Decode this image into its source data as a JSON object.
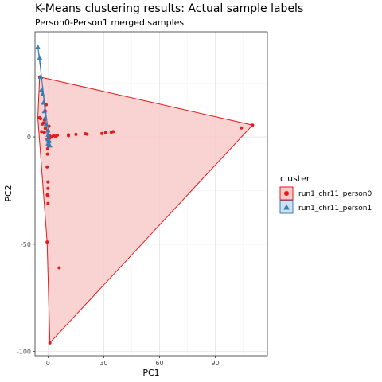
{
  "chart_data": {
    "type": "scatter",
    "title": "K-Means clustering results: Actual sample labels",
    "subtitle": "Person0-Person1 merged samples",
    "xlabel": "PC1",
    "ylabel": "PC2",
    "xlim": [
      -7,
      118
    ],
    "ylim": [
      -102,
      49
    ],
    "xticks": [
      0,
      30,
      60,
      90
    ],
    "xtick_labels": [
      "0",
      "30",
      "60",
      "90"
    ],
    "yticks": [
      0,
      -50,
      -100
    ],
    "ytick_labels": [
      "0",
      "-50",
      "-100"
    ],
    "grid": true,
    "legend": {
      "title": "cluster",
      "placement": "right"
    },
    "series": [
      {
        "name": "run1_chr11_person0",
        "color": "#e41a1c",
        "fill": "#f8caca",
        "marker": "circle",
        "hull": [
          [
            -4.5,
            28
          ],
          [
            -5.5,
            9
          ],
          [
            -0.5,
            -49
          ],
          [
            1,
            -96
          ],
          [
            110,
            5.5
          ]
        ],
        "points": [
          [
            110,
            5.5
          ],
          [
            104,
            4.2
          ],
          [
            35,
            2.5
          ],
          [
            34,
            2.2
          ],
          [
            31,
            2.0
          ],
          [
            29,
            1.6
          ],
          [
            21,
            1.3
          ],
          [
            20,
            1.5
          ],
          [
            15,
            1.2
          ],
          [
            11,
            1.0
          ],
          [
            11,
            0.6
          ],
          [
            5,
            0.8
          ],
          [
            4,
            0.3
          ],
          [
            3,
            0.6
          ],
          [
            2,
            0
          ],
          [
            1,
            -0.5
          ],
          [
            1,
            0.4
          ],
          [
            0.2,
            0.3
          ],
          [
            -0.5,
            -1.0
          ],
          [
            0,
            -1.5
          ],
          [
            0.5,
            -2.5
          ],
          [
            0,
            -4
          ],
          [
            -0.2,
            -5.5
          ],
          [
            -0.3,
            -8
          ],
          [
            -0.5,
            -14
          ],
          [
            0,
            -21
          ],
          [
            0,
            -24
          ],
          [
            -0.4,
            -27
          ],
          [
            0,
            -27.5
          ],
          [
            0,
            -31
          ],
          [
            -0.5,
            -49
          ],
          [
            6,
            -61
          ],
          [
            1,
            -96
          ],
          [
            -4,
            8.5
          ],
          [
            -4.5,
            9
          ],
          [
            -3,
            6
          ],
          [
            -2.5,
            6.5
          ],
          [
            -3.5,
            2.5
          ],
          [
            -2,
            2
          ],
          [
            -1.5,
            4
          ],
          [
            -2,
            8
          ],
          [
            -1.5,
            12
          ],
          [
            -1,
            15
          ],
          [
            0,
            3
          ],
          [
            0.5,
            5
          ],
          [
            -4.5,
            28
          ]
        ]
      },
      {
        "name": "run1_chr11_person1",
        "color": "#377eb8",
        "fill": "#cfe0ef",
        "marker": "triangle",
        "hull": [
          [
            -5.5,
            42
          ],
          [
            -4.5,
            37
          ],
          [
            0,
            -3
          ],
          [
            1,
            -4
          ]
        ],
        "points": [
          [
            -5.5,
            42
          ],
          [
            -4.5,
            37
          ],
          [
            -4,
            28
          ],
          [
            -3.5,
            22
          ],
          [
            -3,
            20
          ],
          [
            -2.5,
            16
          ],
          [
            -2,
            12
          ],
          [
            -1.5,
            9
          ],
          [
            -1,
            6
          ],
          [
            0,
            3
          ],
          [
            0,
            1
          ],
          [
            0,
            -1
          ],
          [
            0.5,
            -1.5
          ],
          [
            0.5,
            -2
          ],
          [
            0,
            -3
          ],
          [
            1,
            -4
          ]
        ]
      }
    ]
  }
}
